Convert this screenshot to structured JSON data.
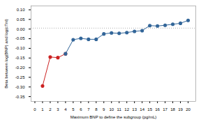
{
  "chart_data": {
    "type": "line",
    "xlabel": "Maximum BNP to define the subgroup (pg/mL)",
    "ylabel": "Beta between log(BNP) and log(cTnI)",
    "xlim": [
      -0.5,
      21
    ],
    "ylim": [
      -0.375,
      0.12
    ],
    "xticks": [
      0,
      1,
      2,
      3,
      4,
      5,
      6,
      7,
      8,
      9,
      10,
      11,
      12,
      13,
      14,
      15,
      16,
      17,
      18,
      19,
      20
    ],
    "yticks": [
      -0.35,
      {
        "value": -0.3,
        "label": "-0.30"
      },
      -0.25,
      {
        "value": -0.2,
        "label": "-0.20"
      },
      -0.15,
      {
        "value": -0.1,
        "label": "-0.10"
      },
      -0.05,
      {
        "value": 0.0,
        "label": "0.00"
      },
      0.05,
      {
        "value": 0.1,
        "label": "0.10"
      }
    ],
    "series": [
      {
        "color": "#cc2222",
        "marker": "o",
        "x": [
          1,
          2,
          3,
          4
        ],
        "values": [
          -0.295,
          -0.145,
          -0.148,
          -0.128
        ]
      },
      {
        "color": "#336699",
        "marker": "o",
        "x": [
          4,
          5,
          6,
          7,
          8,
          9,
          10,
          11,
          12,
          13,
          14,
          15,
          16,
          17,
          18,
          19,
          20
        ],
        "values": [
          -0.128,
          -0.055,
          -0.048,
          -0.053,
          -0.053,
          -0.025,
          -0.02,
          -0.022,
          -0.018,
          -0.012,
          -0.008,
          0.018,
          0.016,
          0.02,
          0.025,
          0.03,
          0.045
        ]
      }
    ],
    "hline": {
      "value": 0.005,
      "color": "#999999",
      "line_style": "dotted"
    }
  }
}
